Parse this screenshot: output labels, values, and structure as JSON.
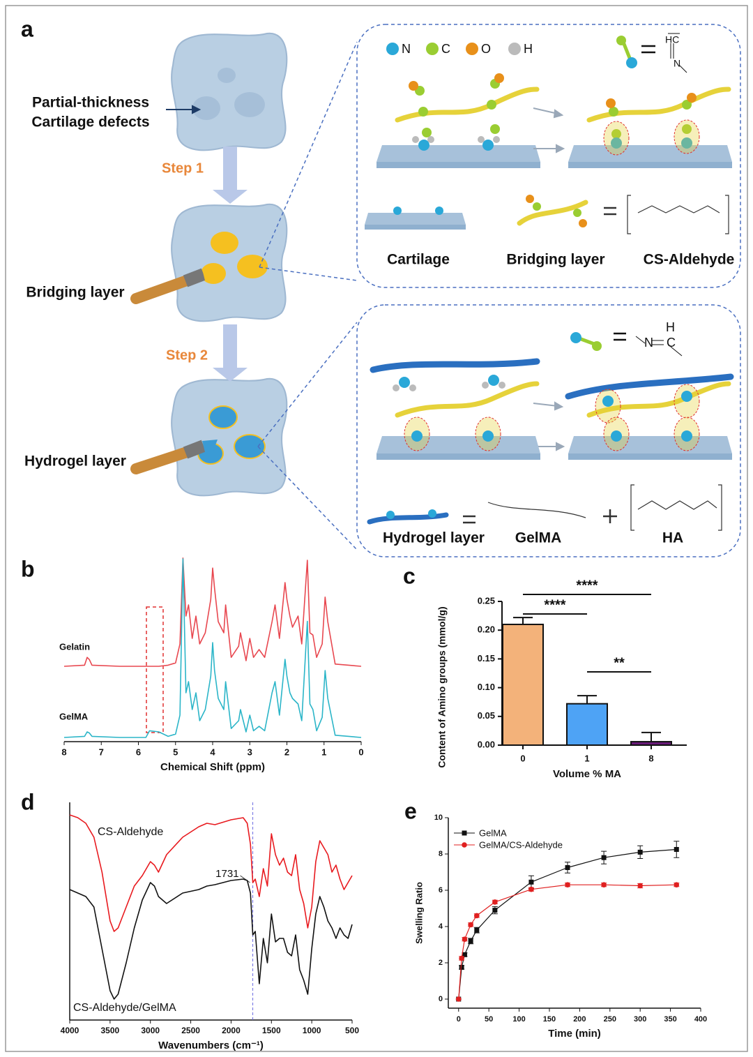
{
  "panel_a": {
    "label": "a",
    "defect_label": [
      "Partial-thickness",
      "Cartilage defects"
    ],
    "step1": "Step 1",
    "step2": "Step 2",
    "bridging_layer": "Bridging layer",
    "hydrogel_layer": "Hydrogel layer",
    "legend": [
      "N",
      "C",
      "O",
      "H"
    ],
    "imine_1": [
      "HC",
      "N"
    ],
    "box1_labels": [
      "Cartilage",
      "Bridging layer",
      "CS-Aldehyde"
    ],
    "imine_2": [
      "H",
      "N",
      "C"
    ],
    "box2_labels": [
      "Hydrogel layer",
      "GelMA",
      "HA"
    ]
  },
  "chart_data": [
    {
      "type": "line",
      "panel_label": "b",
      "x_label": "Chemical Shift (ppm)",
      "x": [
        8,
        7.45,
        7.38,
        7.32,
        7.25,
        6.5,
        5.8,
        5.7,
        5.45,
        5.2,
        5.0,
        4.88,
        4.8,
        4.72,
        4.65,
        4.55,
        4.45,
        4.35,
        4.2,
        4.05,
        4.0,
        3.95,
        3.85,
        3.7,
        3.65,
        3.5,
        3.3,
        3.25,
        3.1,
        3.0,
        2.9,
        2.75,
        2.6,
        2.4,
        2.32,
        2.2,
        2.05,
        2.0,
        1.92,
        1.85,
        1.7,
        1.6,
        1.45,
        1.38,
        1.3,
        1.2,
        1.05,
        0.97,
        0.9,
        0.7,
        0
      ],
      "series": [
        {
          "name": "Gelatin",
          "color": "#e8474f",
          "values": [
            0,
            1,
            8,
            6,
            1,
            0,
            0,
            0,
            0,
            1,
            3,
            20,
            97,
            45,
            55,
            25,
            45,
            20,
            30,
            60,
            88,
            70,
            40,
            30,
            55,
            8,
            18,
            30,
            5,
            25,
            8,
            15,
            8,
            40,
            55,
            25,
            75,
            60,
            45,
            35,
            45,
            20,
            95,
            30,
            28,
            8,
            20,
            62,
            40,
            2,
            0
          ]
        },
        {
          "name": "GelMA",
          "color": "#2bb5c8",
          "values": [
            0,
            1,
            5,
            4,
            1,
            0,
            0,
            6,
            5,
            1,
            3,
            20,
            160,
            40,
            50,
            25,
            40,
            15,
            25,
            55,
            85,
            60,
            35,
            25,
            50,
            8,
            15,
            25,
            5,
            20,
            6,
            10,
            6,
            40,
            50,
            20,
            70,
            55,
            40,
            35,
            30,
            15,
            104,
            30,
            25,
            6,
            18,
            60,
            35,
            2,
            0
          ]
        }
      ],
      "xlim": [
        8,
        0
      ],
      "xticks": [
        8,
        7,
        6,
        5,
        4,
        3,
        2,
        1,
        0
      ]
    },
    {
      "type": "bar",
      "panel_label": "c",
      "x_label": "Volume % MA",
      "y_label": "Content of Amino groups (mmol/g)",
      "categories": [
        "0",
        "1",
        "8"
      ],
      "values": [
        0.21,
        0.072,
        0.006
      ],
      "errors": [
        0.012,
        0.014,
        0.016
      ],
      "colors": [
        "#f3b27a",
        "#4ea3f5",
        "#6a1b7a"
      ],
      "ylim": [
        0,
        0.25
      ],
      "yticks": [
        {
          "value": 0,
          "label": "0.00"
        },
        0.05,
        {
          "value": 0.1,
          "label": "0.10"
        },
        0.15,
        {
          "value": 0.2,
          "label": "0.20"
        },
        0.25
      ],
      "annotations": [
        "****",
        "****",
        "**"
      ]
    },
    {
      "type": "line",
      "panel_label": "d",
      "x_label": "Wavenumbers (cm⁻¹)",
      "x": [
        4000,
        3900,
        3800,
        3700,
        3600,
        3500,
        3450,
        3400,
        3300,
        3200,
        3100,
        3000,
        2950,
        2900,
        2800,
        2600,
        2400,
        2300,
        2200,
        2000,
        1850,
        1800,
        1760,
        1731,
        1700,
        1650,
        1600,
        1550,
        1500,
        1450,
        1400,
        1350,
        1300,
        1250,
        1200,
        1150,
        1100,
        1050,
        1000,
        950,
        900,
        850,
        800,
        750,
        700,
        650,
        600,
        550,
        500
      ],
      "series": [
        {
          "name": "CS-Aldehyde",
          "color": "#e8191e",
          "values": [
            294,
            290,
            282,
            262,
            212,
            142,
            127,
            132,
            162,
            192,
            207,
            227,
            222,
            212,
            237,
            262,
            277,
            282,
            280,
            287,
            290,
            282,
            252,
            197,
            202,
            177,
            217,
            192,
            267,
            237,
            222,
            232,
            212,
            207,
            237,
            187,
            167,
            132,
            162,
            227,
            257,
            247,
            237,
            212,
            222,
            202,
            187,
            197,
            207
          ]
        },
        {
          "name": "CS-Aldehyde/GelMA",
          "color": "#111111",
          "values": [
            187,
            182,
            177,
            162,
            102,
            42,
            30,
            37,
            82,
            132,
            172,
            197,
            192,
            177,
            167,
            182,
            187,
            192,
            194,
            200,
            202,
            200,
            182,
            122,
            127,
            52,
            117,
            82,
            152,
            112,
            117,
            117,
            97,
            92,
            122,
            72,
            57,
            37,
            102,
            152,
            177,
            162,
            142,
            132,
            117,
            132,
            122,
            117,
            137
          ]
        }
      ],
      "xlim": [
        4000,
        500
      ],
      "xticks": [
        4000,
        3500,
        3000,
        2500,
        2000,
        1500,
        1000,
        500
      ],
      "marker": 1731
    },
    {
      "type": "line",
      "panel_label": "e",
      "x_label": "Time (min)",
      "y_label": "Swelling Ratio",
      "x": [
        0,
        5,
        10,
        20,
        30,
        60,
        120,
        180,
        240,
        300,
        360
      ],
      "series": [
        {
          "name": "GelMA",
          "color": "#111111",
          "marker": "square",
          "values": [
            0,
            1.75,
            2.45,
            3.2,
            3.8,
            4.9,
            6.45,
            7.25,
            7.8,
            8.1,
            8.25
          ],
          "errors": [
            0,
            0.1,
            0.1,
            0.15,
            0.15,
            0.2,
            0.35,
            0.3,
            0.35,
            0.35,
            0.45
          ]
        },
        {
          "name": "GelMA/CS-Aldehyde",
          "color": "#e02020",
          "marker": "circle",
          "values": [
            0,
            2.25,
            3.3,
            4.1,
            4.6,
            5.35,
            6.05,
            6.3,
            6.3,
            6.25,
            6.3
          ],
          "errors": [
            0,
            0.1,
            0.1,
            0.1,
            0.1,
            0.1,
            0.1,
            0.1,
            0.1,
            0.12,
            0.1
          ]
        }
      ],
      "xlim": [
        -17,
        400
      ],
      "ylim": [
        -0.5,
        10
      ],
      "xticks": [
        0,
        50,
        100,
        150,
        200,
        250,
        300,
        350,
        400
      ],
      "yticks": [
        0,
        2,
        4,
        6,
        8,
        10
      ],
      "legend": "upper left"
    }
  ]
}
